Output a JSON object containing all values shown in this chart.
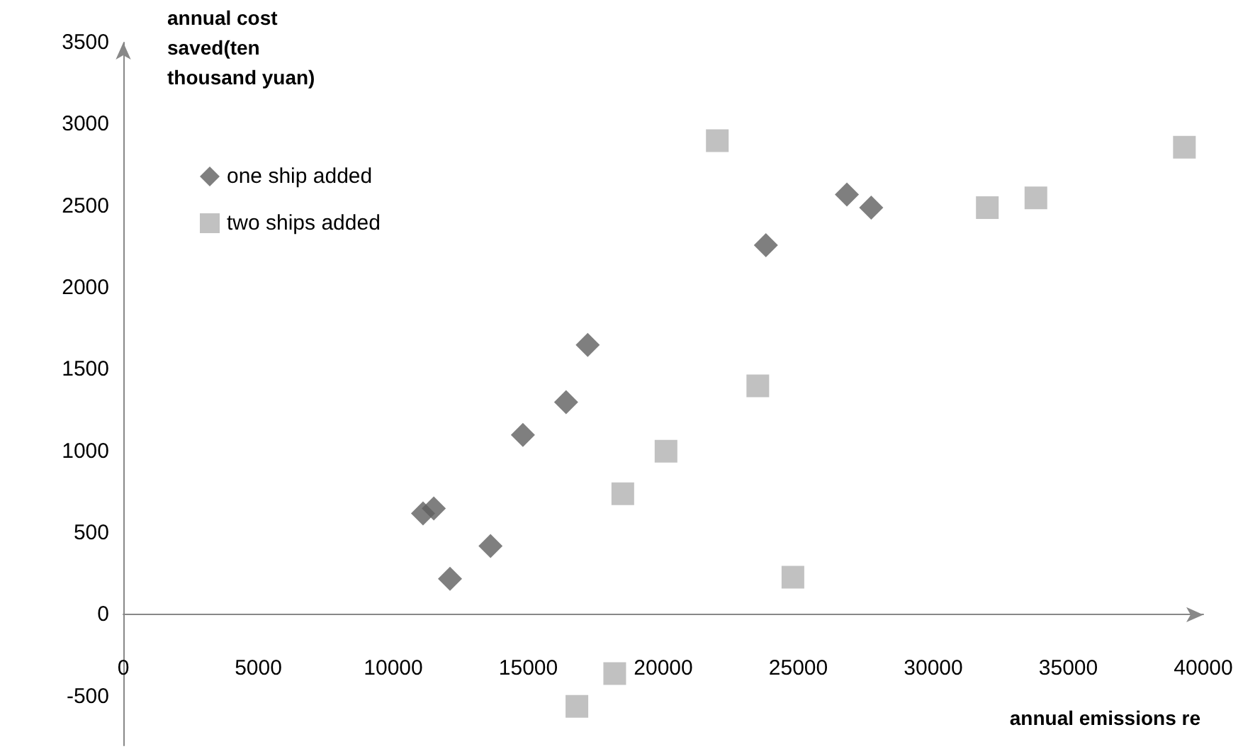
{
  "chart_data": {
    "type": "scatter",
    "xlabel": "annual emissions re",
    "ylabel": "annual cost saved(ten thousand yuan)",
    "xlim": [
      0,
      40000
    ],
    "xticks": [
      0,
      5000,
      10000,
      15000,
      20000,
      25000,
      30000,
      35000,
      40000
    ],
    "ylim": [
      -800,
      3500
    ],
    "yticks": [
      -500,
      0,
      500,
      1000,
      1500,
      2000,
      2500,
      3000,
      3500
    ],
    "grid": false,
    "legend": "top left",
    "series": [
      {
        "name": "one ship added",
        "color": "#5f5f5f",
        "marker": "diamond",
        "x": [
          11100,
          11500,
          12100,
          13600,
          14800,
          16400,
          17200,
          23800,
          26800,
          27700
        ],
        "values": [
          620,
          650,
          220,
          420,
          1100,
          1300,
          1650,
          2260,
          2570,
          2490
        ]
      },
      {
        "name": "two ships added",
        "color": "#b2b2b2",
        "marker": "square",
        "x": [
          22000,
          23500,
          20100,
          18500,
          24800,
          16800,
          18200,
          32000,
          33800,
          39300
        ],
        "values": [
          2900,
          1400,
          1000,
          740,
          230,
          -560,
          -360,
          2490,
          2550,
          2860
        ]
      }
    ]
  }
}
